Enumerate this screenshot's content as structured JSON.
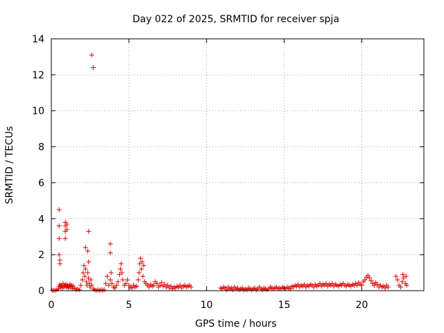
{
  "chart_data": {
    "type": "scatter",
    "title": "Day 022 of 2025, SRMTID for receiver spja",
    "xlabel": "GPS time / hours",
    "ylabel": "SRMTID / TECUs",
    "xlim": [
      0,
      24
    ],
    "ylim": [
      0,
      14
    ],
    "xticks": [
      0,
      5,
      10,
      15,
      20
    ],
    "yticks": [
      0,
      2,
      4,
      6,
      8,
      10,
      12,
      14
    ],
    "grid": true,
    "marker": "+",
    "color": "#e00000",
    "series": [
      {
        "points": [
          [
            0.05,
            0.02
          ],
          [
            0.15,
            0.03
          ],
          [
            0.25,
            0.01
          ],
          [
            0.35,
            0.05
          ],
          [
            0.45,
            0.1
          ],
          [
            0.5,
            0.25
          ],
          [
            0.55,
            0.35
          ],
          [
            0.6,
            0.2
          ],
          [
            0.65,
            0.3
          ],
          [
            0.7,
            0.15
          ],
          [
            0.75,
            0.4
          ],
          [
            0.8,
            0.2
          ],
          [
            0.85,
            0.3
          ],
          [
            0.9,
            0.25
          ],
          [
            0.95,
            0.35
          ],
          [
            1.0,
            0.2
          ],
          [
            1.05,
            0.3
          ],
          [
            1.1,
            0.15
          ],
          [
            1.15,
            0.25
          ],
          [
            1.2,
            0.35
          ],
          [
            1.25,
            0.2
          ],
          [
            1.3,
            0.3
          ],
          [
            1.35,
            0.1
          ],
          [
            1.4,
            0.25
          ],
          [
            1.5,
            0.15
          ],
          [
            1.6,
            0.05
          ],
          [
            1.7,
            0.1
          ],
          [
            1.8,
            0.05
          ],
          [
            1.9,
            0.3
          ],
          [
            2.0,
            0.6
          ],
          [
            2.05,
            1.0
          ],
          [
            2.1,
            1.4
          ],
          [
            2.15,
            0.8
          ],
          [
            2.2,
            1.2
          ],
          [
            2.25,
            0.5
          ],
          [
            2.3,
            0.3
          ],
          [
            2.35,
            1.0
          ],
          [
            2.4,
            0.7
          ],
          [
            2.45,
            0.4
          ],
          [
            2.5,
            0.2
          ],
          [
            2.55,
            0.6
          ],
          [
            2.6,
            0.3
          ],
          [
            2.7,
            0.1
          ],
          [
            2.8,
            0.05
          ],
          [
            2.9,
            0.02
          ],
          [
            3.0,
            0.05
          ],
          [
            3.1,
            0.02
          ],
          [
            3.2,
            0.05
          ],
          [
            3.3,
            0.03
          ],
          [
            3.4,
            0.05
          ],
          [
            3.5,
            0.4
          ],
          [
            3.6,
            0.8
          ],
          [
            3.7,
            0.3
          ],
          [
            3.8,
            0.6
          ],
          [
            3.9,
            0.4
          ],
          [
            4.0,
            0.2
          ],
          [
            4.1,
            0.15
          ],
          [
            4.2,
            0.3
          ],
          [
            4.3,
            0.5
          ],
          [
            4.4,
            0.9
          ],
          [
            4.45,
            1.2
          ],
          [
            4.5,
            1.5
          ],
          [
            4.55,
            1.0
          ],
          [
            4.6,
            0.6
          ],
          [
            4.7,
            0.3
          ],
          [
            4.8,
            0.4
          ],
          [
            4.9,
            0.6
          ],
          [
            5.0,
            0.3
          ],
          [
            5.1,
            0.2
          ],
          [
            5.2,
            0.15
          ],
          [
            5.3,
            0.3
          ],
          [
            5.4,
            0.2
          ],
          [
            5.5,
            0.25
          ],
          [
            5.6,
            0.6
          ],
          [
            5.65,
            1.0
          ],
          [
            5.7,
            1.5
          ],
          [
            5.75,
            1.8
          ],
          [
            5.8,
            1.2
          ],
          [
            5.85,
            1.6
          ],
          [
            5.9,
            0.8
          ],
          [
            5.95,
            1.4
          ],
          [
            6.0,
            0.5
          ],
          [
            6.1,
            0.4
          ],
          [
            6.2,
            0.3
          ],
          [
            6.3,
            0.2
          ],
          [
            6.4,
            0.35
          ],
          [
            6.5,
            0.25
          ],
          [
            6.6,
            0.3
          ],
          [
            6.7,
            0.5
          ],
          [
            6.8,
            0.4
          ],
          [
            6.9,
            0.2
          ],
          [
            7.0,
            0.3
          ],
          [
            7.1,
            0.45
          ],
          [
            7.2,
            0.25
          ],
          [
            7.3,
            0.35
          ],
          [
            7.4,
            0.2
          ],
          [
            7.5,
            0.3
          ],
          [
            7.6,
            0.15
          ],
          [
            7.7,
            0.25
          ],
          [
            7.8,
            0.1
          ],
          [
            7.9,
            0.2
          ],
          [
            8.0,
            0.15
          ],
          [
            8.1,
            0.25
          ],
          [
            8.2,
            0.2
          ],
          [
            8.3,
            0.3
          ],
          [
            8.4,
            0.15
          ],
          [
            8.5,
            0.25
          ],
          [
            8.6,
            0.3
          ],
          [
            8.7,
            0.2
          ],
          [
            8.8,
            0.25
          ],
          [
            8.9,
            0.3
          ],
          [
            9.0,
            0.2
          ],
          [
            0.5,
            4.5
          ],
          [
            0.5,
            3.6
          ],
          [
            0.5,
            2.9
          ],
          [
            0.5,
            2.0
          ],
          [
            0.55,
            1.7
          ],
          [
            0.55,
            1.5
          ],
          [
            0.9,
            3.8
          ],
          [
            0.9,
            3.6
          ],
          [
            0.9,
            3.3
          ],
          [
            0.9,
            2.9
          ],
          [
            1.0,
            3.7
          ],
          [
            1.0,
            3.4
          ],
          [
            2.2,
            2.4
          ],
          [
            2.35,
            2.2
          ],
          [
            2.4,
            3.3
          ],
          [
            2.4,
            1.6
          ],
          [
            2.6,
            13.1
          ],
          [
            2.7,
            12.4
          ],
          [
            3.8,
            2.6
          ],
          [
            3.8,
            2.1
          ],
          [
            3.85,
            1.0
          ],
          [
            10.9,
            0.15
          ],
          [
            11.0,
            0.1
          ],
          [
            11.1,
            0.2
          ],
          [
            11.2,
            0.15
          ],
          [
            11.3,
            0.05
          ],
          [
            11.4,
            0.2
          ],
          [
            11.5,
            0.1
          ],
          [
            11.6,
            0.15
          ],
          [
            11.7,
            0.05
          ],
          [
            11.8,
            0.2
          ],
          [
            11.9,
            0.1
          ],
          [
            12.0,
            0.15
          ],
          [
            12.1,
            0.05
          ],
          [
            12.2,
            0.1
          ],
          [
            12.3,
            0.15
          ],
          [
            12.4,
            0.05
          ],
          [
            12.5,
            0.1
          ],
          [
            12.6,
            0.05
          ],
          [
            12.7,
            0.15
          ],
          [
            12.8,
            0.1
          ],
          [
            12.9,
            0.05
          ],
          [
            13.0,
            0.1
          ],
          [
            13.1,
            0.15
          ],
          [
            13.2,
            0.05
          ],
          [
            13.3,
            0.1
          ],
          [
            13.4,
            0.2
          ],
          [
            13.5,
            0.1
          ],
          [
            13.6,
            0.05
          ],
          [
            13.7,
            0.15
          ],
          [
            13.8,
            0.1
          ],
          [
            13.9,
            0.05
          ],
          [
            14.0,
            0.1
          ],
          [
            14.1,
            0.2
          ],
          [
            14.2,
            0.15
          ],
          [
            14.3,
            0.1
          ],
          [
            14.4,
            0.15
          ],
          [
            14.5,
            0.2
          ],
          [
            14.6,
            0.1
          ],
          [
            14.7,
            0.15
          ],
          [
            14.8,
            0.1
          ],
          [
            14.9,
            0.2
          ],
          [
            15.0,
            0.15
          ],
          [
            15.1,
            0.1
          ],
          [
            15.2,
            0.2
          ],
          [
            15.3,
            0.15
          ],
          [
            15.4,
            0.1
          ],
          [
            15.5,
            0.25
          ],
          [
            15.6,
            0.2
          ],
          [
            15.7,
            0.3
          ],
          [
            15.8,
            0.25
          ],
          [
            15.9,
            0.35
          ],
          [
            16.0,
            0.2
          ],
          [
            16.1,
            0.3
          ],
          [
            16.2,
            0.25
          ],
          [
            16.3,
            0.35
          ],
          [
            16.4,
            0.2
          ],
          [
            16.5,
            0.3
          ],
          [
            16.6,
            0.25
          ],
          [
            16.7,
            0.35
          ],
          [
            16.8,
            0.3
          ],
          [
            16.9,
            0.2
          ],
          [
            17.0,
            0.35
          ],
          [
            17.1,
            0.25
          ],
          [
            17.2,
            0.3
          ],
          [
            17.3,
            0.4
          ],
          [
            17.4,
            0.25
          ],
          [
            17.5,
            0.35
          ],
          [
            17.6,
            0.3
          ],
          [
            17.7,
            0.4
          ],
          [
            17.8,
            0.25
          ],
          [
            17.9,
            0.35
          ],
          [
            18.0,
            0.3
          ],
          [
            18.1,
            0.4
          ],
          [
            18.2,
            0.25
          ],
          [
            18.3,
            0.35
          ],
          [
            18.4,
            0.3
          ],
          [
            18.5,
            0.25
          ],
          [
            18.6,
            0.35
          ],
          [
            18.7,
            0.3
          ],
          [
            18.8,
            0.4
          ],
          [
            18.9,
            0.3
          ],
          [
            19.0,
            0.25
          ],
          [
            19.1,
            0.35
          ],
          [
            19.2,
            0.3
          ],
          [
            19.3,
            0.25
          ],
          [
            19.4,
            0.35
          ],
          [
            19.5,
            0.3
          ],
          [
            19.6,
            0.4
          ],
          [
            19.7,
            0.3
          ],
          [
            19.8,
            0.45
          ],
          [
            19.9,
            0.35
          ],
          [
            20.0,
            0.3
          ],
          [
            20.1,
            0.5
          ],
          [
            20.2,
            0.6
          ],
          [
            20.3,
            0.75
          ],
          [
            20.4,
            0.85
          ],
          [
            20.5,
            0.7
          ],
          [
            20.6,
            0.55
          ],
          [
            20.7,
            0.4
          ],
          [
            20.8,
            0.3
          ],
          [
            20.9,
            0.45
          ],
          [
            21.0,
            0.35
          ],
          [
            21.1,
            0.2
          ],
          [
            21.2,
            0.3
          ],
          [
            21.3,
            0.2
          ],
          [
            21.4,
            0.25
          ],
          [
            21.5,
            0.15
          ],
          [
            21.6,
            0.3
          ],
          [
            21.7,
            0.2
          ],
          [
            22.2,
            0.8
          ],
          [
            22.3,
            0.6
          ],
          [
            22.4,
            0.3
          ],
          [
            22.5,
            0.2
          ],
          [
            22.6,
            0.5
          ],
          [
            22.65,
            0.9
          ],
          [
            22.7,
            0.7
          ],
          [
            22.8,
            0.4
          ],
          [
            22.85,
            0.8
          ],
          [
            22.9,
            0.3
          ]
        ]
      }
    ]
  }
}
